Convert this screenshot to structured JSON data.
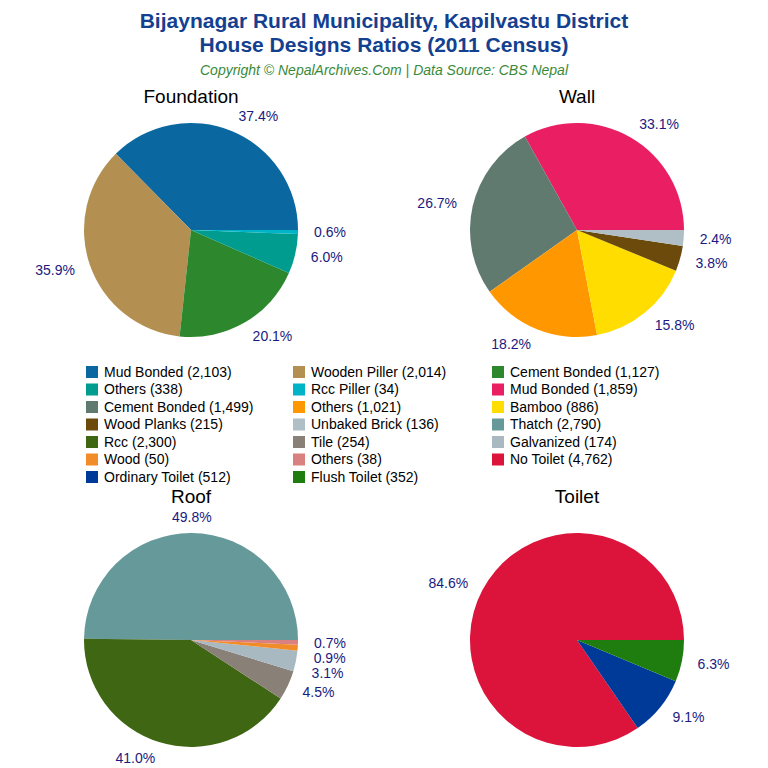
{
  "header": {
    "title": [
      "Bijaynagar Rural Municipality, Kapilvastu District",
      "House Designs Ratios (2011 Census)"
    ],
    "subtitle": "Copyright © NepalArchives.Com | Data Source: CBS Nepal"
  },
  "chart_data": [
    {
      "type": "pie",
      "title": "Foundation",
      "categories": [
        "Mud Bonded (2,103)",
        "Wooden Piller (2,014)",
        "Cement Bonded (1,127)",
        "Others (338)",
        "Rcc Piller (34)"
      ],
      "values": [
        37.4,
        35.9,
        20.1,
        6.0,
        0.6
      ],
      "value_labels": [
        "37.4%",
        "35.9%",
        "20.1%",
        "6.0%",
        "0.6%"
      ],
      "colors": [
        "#0b67a0",
        "#b38f52",
        "#2d882d",
        "#009c8f",
        "#00b4c8"
      ],
      "data_labels": true
    },
    {
      "type": "pie",
      "title": "Wall",
      "categories": [
        "Mud Bonded (1,859)",
        "Cement Bonded (1,499)",
        "Others (1,021)",
        "Bamboo (886)",
        "Wood Planks (215)",
        "Unbaked Brick (136)"
      ],
      "values": [
        33.1,
        26.7,
        18.2,
        15.8,
        3.8,
        2.4
      ],
      "value_labels": [
        "33.1%",
        "26.7%",
        "18.2%",
        "15.8%",
        "3.8%",
        "2.4%"
      ],
      "colors": [
        "#e91e63",
        "#607a70",
        "#ff9800",
        "#ffdd00",
        "#6b4a0c",
        "#b0bec5"
      ],
      "data_labels": true
    },
    {
      "type": "pie",
      "title": "Roof",
      "categories": [
        "Thatch (2,790)",
        "Rcc (2,300)",
        "Tile (254)",
        "Galvanized (174)",
        "Wood (50)",
        "Others (38)"
      ],
      "values": [
        49.8,
        41.0,
        4.5,
        3.1,
        0.9,
        0.7
      ],
      "value_labels": [
        "49.8%",
        "41.0%",
        "4.5%",
        "3.1%",
        "0.9%",
        "0.7%"
      ],
      "colors": [
        "#669999",
        "#3f6613",
        "#898077",
        "#a9b9c2",
        "#f28c28",
        "#d98080"
      ],
      "data_labels": true
    },
    {
      "type": "pie",
      "title": "Toilet",
      "categories": [
        "No Toilet (4,762)",
        "Ordinary Toilet (512)",
        "Flush Toilet (352)"
      ],
      "values": [
        84.6,
        9.1,
        6.3
      ],
      "value_labels": [
        "84.6%",
        "9.1%",
        "6.3%"
      ],
      "colors": [
        "#dc143c",
        "#003a99",
        "#1e7d0e"
      ],
      "data_labels": true
    }
  ]
}
